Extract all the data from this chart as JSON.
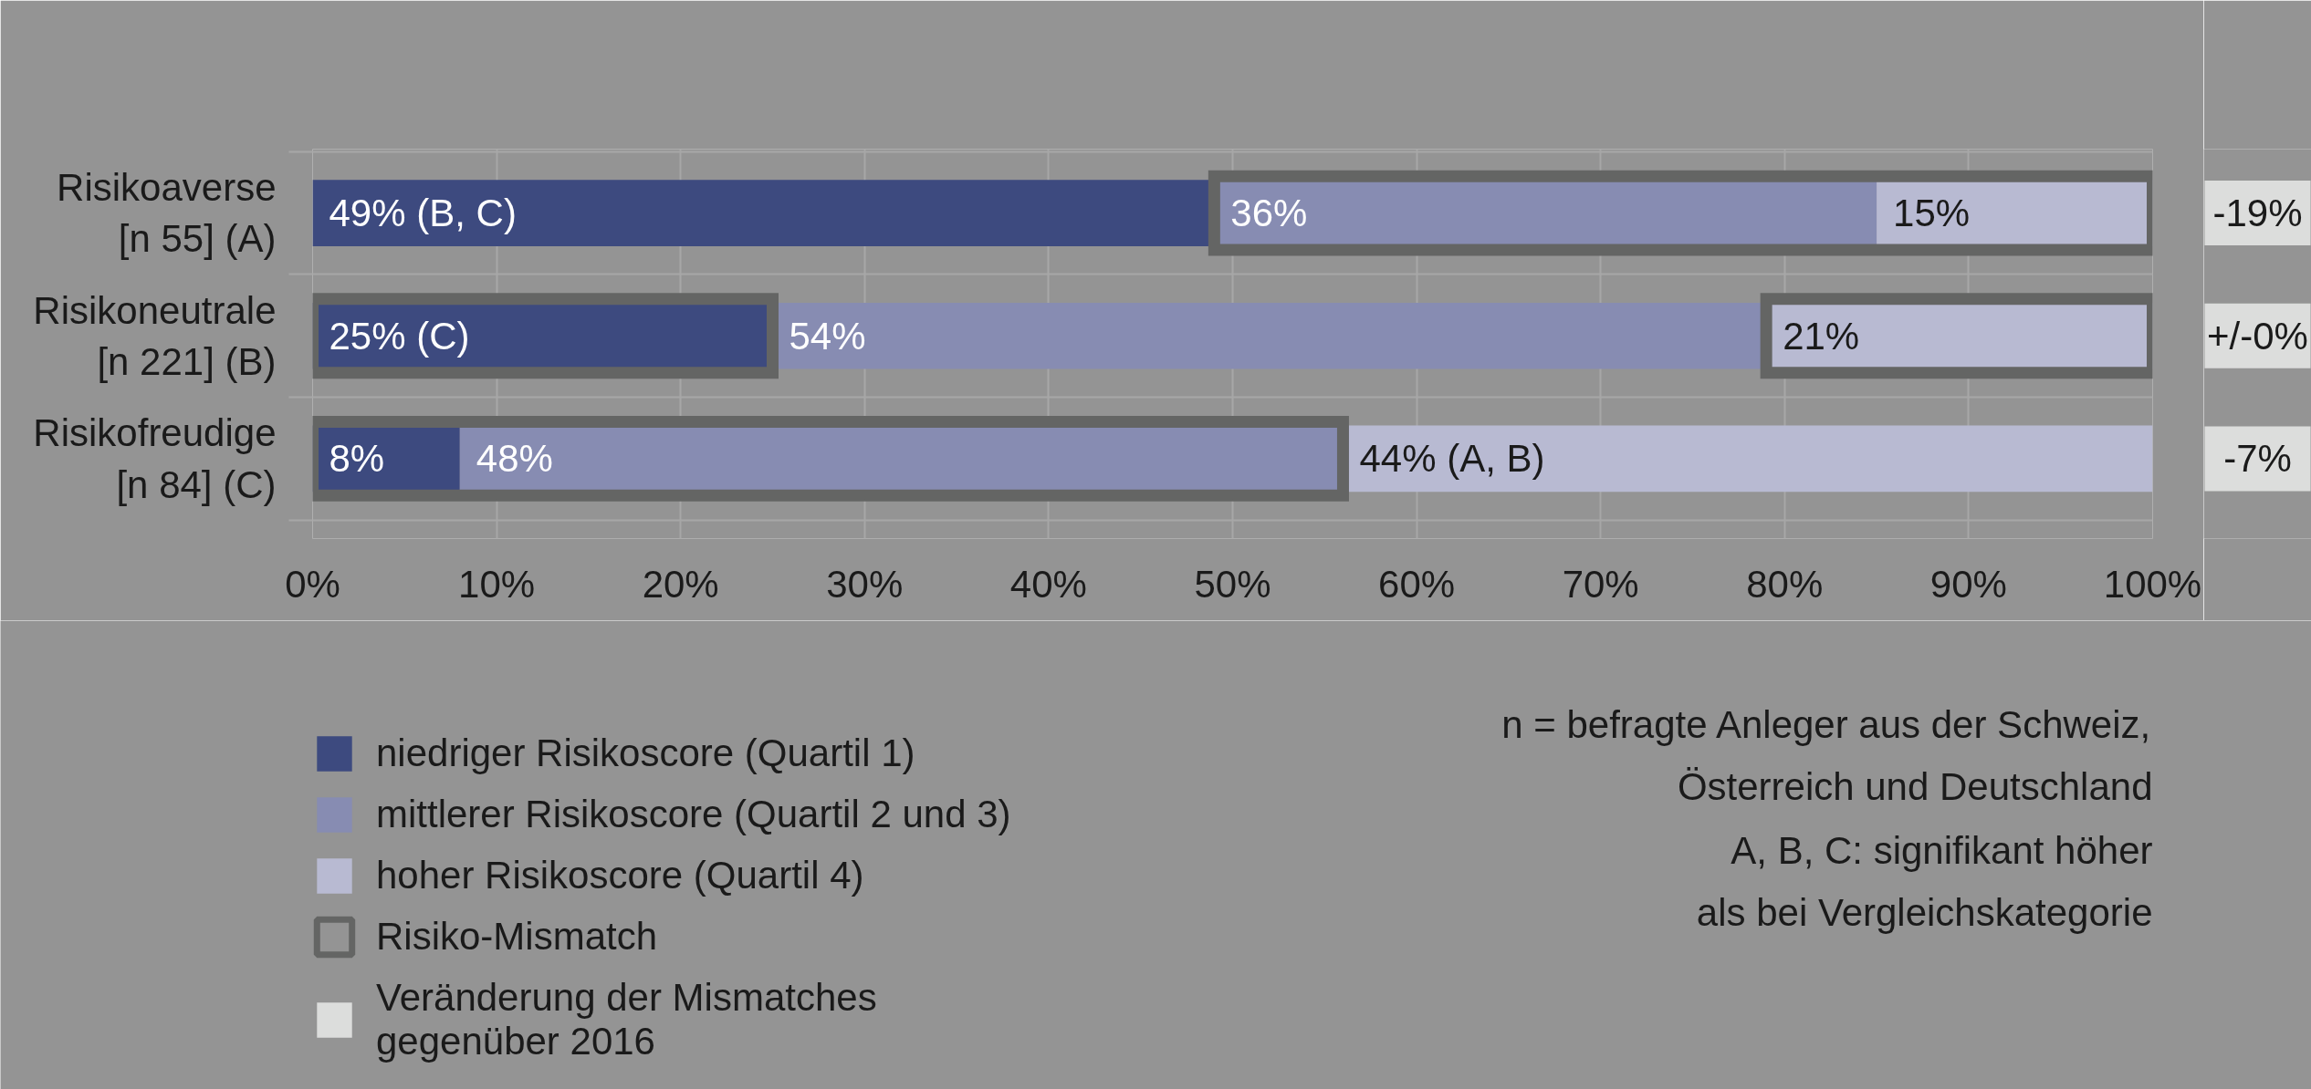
{
  "chart_data": {
    "type": "bar",
    "orientation": "horizontal",
    "categories": [
      "Risikoaverse\n[n 55] (A)",
      "Risikoneutrale\n[n 221] (B)",
      "Risikofreudige\n[n 84] (C)"
    ],
    "series": [
      {
        "name": "niedriger Risikoscore (Quartil 1)",
        "color": "#3d4a7f",
        "base": [
          0,
          0,
          0
        ],
        "values": [
          49,
          25,
          8
        ],
        "value_labels": [
          "49% (B, C)",
          "25% (C)",
          "8%"
        ]
      },
      {
        "name": "mittlerer Risikoscore (Quartil 2 und 3)",
        "color": "#878cb2",
        "base": [
          49,
          25,
          8
        ],
        "values": [
          36,
          54,
          48
        ],
        "value_labels": [
          "36%",
          "54%",
          "48%"
        ]
      },
      {
        "name": "hoher Risikoscore (Quartil 4)",
        "color": "#b8bad2",
        "base": [
          85,
          79,
          56
        ],
        "values": [
          15,
          21,
          44
        ],
        "value_labels": [
          "15%",
          "21%",
          "44% (A, B)"
        ]
      },
      {
        "name": "Risiko-Mismatch",
        "color": "#646564",
        "base": [
          49,
          0,
          0
        ],
        "values": [
          51,
          25,
          56
        ]
      },
      {
        "color": "#646564",
        "base": [
          null,
          79,
          null
        ],
        "values": [
          null,
          21,
          null
        ]
      },
      {
        "name": "Veränderung der Mismatches\ngegenüber 2016",
        "type": "other",
        "color": "#dcdddc",
        "values": [
          null,
          null,
          null
        ],
        "value_labels": [
          "-19%",
          "+/-0%",
          "-7%"
        ]
      }
    ],
    "xlim": [
      0,
      100
    ],
    "xticks": [
      {
        "value": 0,
        "label": "0%"
      },
      {
        "value": 10,
        "label": "10%"
      },
      {
        "value": 20,
        "label": "20%"
      },
      {
        "value": 30,
        "label": "30%"
      },
      {
        "value": 40,
        "label": "40%"
      },
      {
        "value": 50,
        "label": "50%"
      },
      {
        "value": 60,
        "label": "60%"
      },
      {
        "value": 70,
        "label": "70%"
      },
      {
        "value": 80,
        "label": "80%"
      },
      {
        "value": 90,
        "label": "90%"
      },
      {
        "value": 100,
        "label": "100%"
      }
    ],
    "grid": true,
    "legend": "bottom",
    "annotations": [
      "n = befragte Anleger aus der Schweiz,\nÖsterreich und Deutschland",
      "A, B, C: signifikant höher\nals bei Vergleichskategorie"
    ]
  }
}
